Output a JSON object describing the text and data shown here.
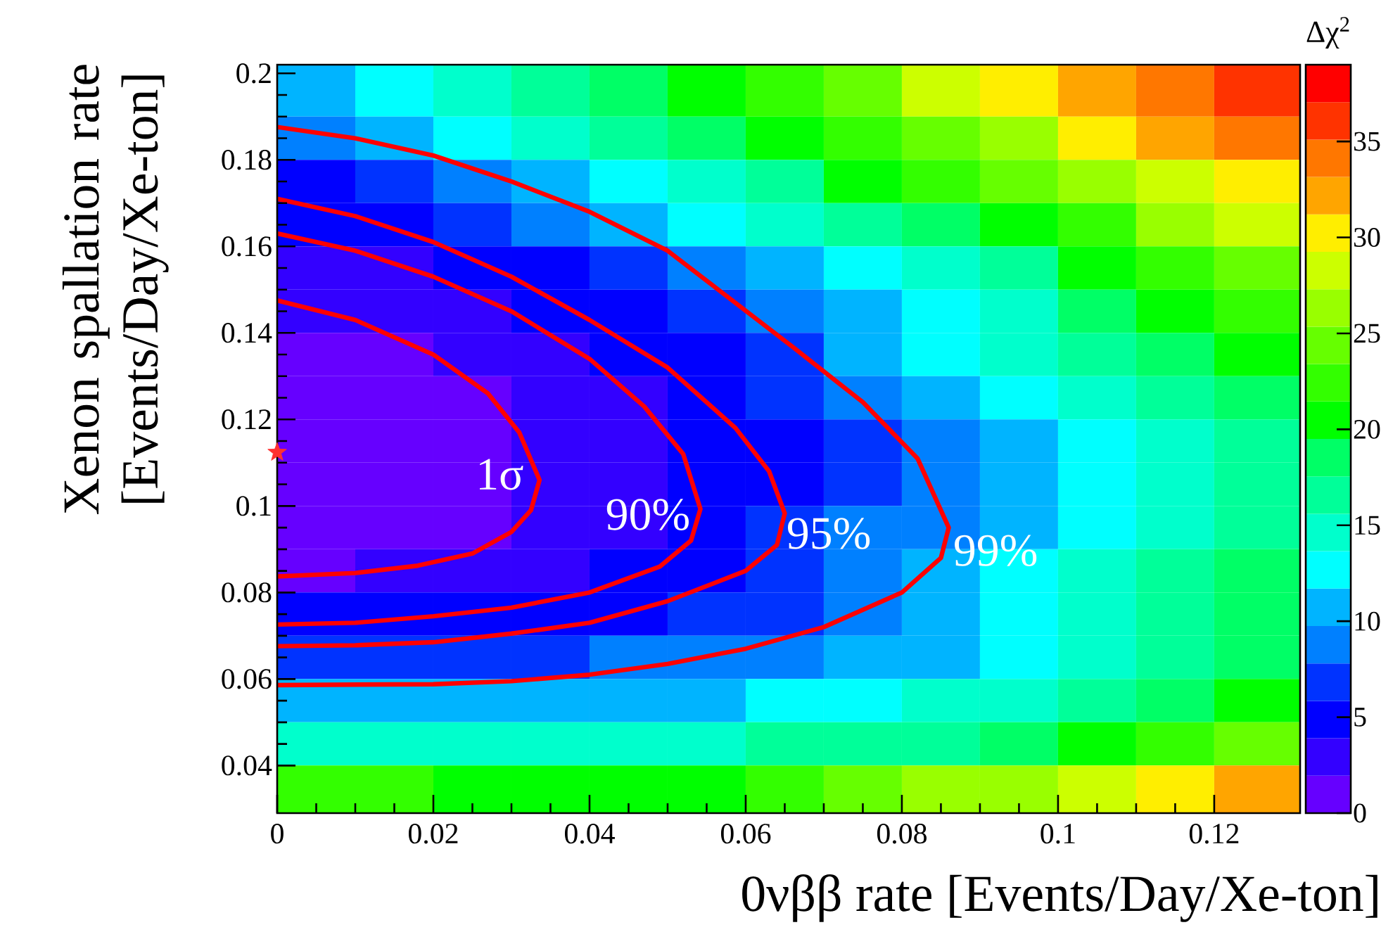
{
  "chart_data": {
    "type": "heatmap",
    "xlabel": "0νββ rate [Events/Day/Xe-ton]",
    "ylabel": "Xenon spallation rate [Events/Day/Xe-ton]",
    "clabel": "Δχ$^{2}$",
    "x": [
      0.005,
      0.015,
      0.025,
      0.035,
      0.045,
      0.055,
      0.065,
      0.075,
      0.085,
      0.095,
      0.105,
      0.115,
      0.125
    ],
    "y": [
      0.195,
      0.185,
      0.175,
      0.165,
      0.155,
      0.145,
      0.135,
      0.125,
      0.115,
      0.105,
      0.095,
      0.085,
      0.075,
      0.065,
      0.055,
      0.045,
      0.035
    ],
    "cells": [
      [
        11,
        13,
        15,
        17,
        19,
        21,
        23,
        25,
        29,
        31,
        33,
        35,
        37
      ],
      [
        9,
        11,
        13,
        15,
        17,
        19,
        21,
        23,
        25,
        27,
        31,
        33,
        35
      ],
      [
        5.5,
        7,
        9,
        11,
        13,
        15,
        17,
        21,
        23,
        25,
        27,
        29,
        31
      ],
      [
        4,
        5,
        7,
        9,
        11,
        13,
        15,
        17,
        19,
        21,
        23,
        27,
        29
      ],
      [
        3,
        3.5,
        5,
        5,
        7,
        9,
        11,
        13,
        15,
        17,
        21,
        23,
        25
      ],
      [
        2.2,
        2.5,
        3,
        5,
        5,
        7,
        9,
        11,
        13,
        15,
        19,
        21,
        23
      ],
      [
        1.2,
        1.5,
        2.5,
        3,
        5,
        5,
        7,
        11,
        13,
        15,
        17,
        19,
        21
      ],
      [
        1,
        1,
        1.5,
        3,
        3,
        5,
        7,
        9,
        11,
        13,
        15,
        17,
        19
      ],
      [
        0.5,
        0.8,
        1.2,
        2.5,
        3,
        5,
        5.5,
        7.5,
        9,
        11,
        13,
        15,
        17
      ],
      [
        0.3,
        0.5,
        1,
        2.5,
        3,
        4.5,
        5.5,
        7.5,
        9,
        11,
        13,
        15,
        17
      ],
      [
        0.5,
        0.8,
        1.5,
        2.5,
        3.5,
        4.5,
        6.5,
        8,
        9.5,
        11,
        13,
        15,
        17
      ],
      [
        1.8,
        2,
        2.5,
        3,
        4,
        5,
        7,
        9,
        11,
        13,
        15,
        17,
        19
      ],
      [
        4,
        4,
        4.5,
        5,
        5.5,
        6.5,
        7.5,
        9.5,
        11,
        13,
        15,
        17,
        19
      ],
      [
        7,
        7,
        7.5,
        7.5,
        8,
        9,
        9.5,
        11,
        11.5,
        13,
        15,
        17,
        19
      ],
      [
        11,
        11,
        11,
        11,
        11,
        11.5,
        12,
        13,
        14,
        15,
        17,
        19,
        21
      ],
      [
        15.5,
        15.5,
        15,
        15,
        15,
        15.5,
        16,
        17,
        17.5,
        19,
        21,
        23,
        25
      ],
      [
        22,
        22,
        21,
        21,
        21,
        21,
        22,
        24,
        26,
        27,
        29,
        31,
        33
      ]
    ],
    "clim": [
      0,
      39
    ],
    "cticks": [
      0,
      5,
      10,
      15,
      20,
      25,
      30,
      35
    ],
    "xlim": [
      0,
      0.131
    ],
    "ylim": [
      0.029,
      0.202
    ],
    "xticks": [
      0,
      0.02,
      0.04,
      0.06,
      0.08,
      {
        "value": 0.1,
        "label": "0.1"
      },
      0.12
    ],
    "yticks": [
      0.04,
      0.06,
      0.08,
      {
        "value": 0.1,
        "label": "0.1"
      },
      0.12,
      0.14,
      0.16,
      0.18,
      {
        "value": 0.2,
        "label": "0.2"
      }
    ],
    "series": [
      {
        "type": "line",
        "name": "1σ",
        "color": "#ff0000",
        "x": [
          0,
          0.01,
          0.02,
          0.027,
          0.031,
          0.0336,
          0.0325,
          0.03,
          0.025,
          0.018,
          0.01,
          0
        ],
        "values": [
          0.1475,
          0.143,
          0.135,
          0.126,
          0.117,
          0.106,
          0.099,
          0.094,
          0.089,
          0.0862,
          0.0845,
          0.0837
        ]
      },
      {
        "type": "line",
        "name": "90%",
        "color": "#ff0000",
        "x": [
          0,
          0.01,
          0.02,
          0.03,
          0.04,
          0.047,
          0.052,
          0.0542,
          0.053,
          0.049,
          0.04,
          0.03,
          0.02,
          0.01,
          0
        ],
        "values": [
          0.163,
          0.159,
          0.153,
          0.145,
          0.134,
          0.123,
          0.112,
          0.0993,
          0.092,
          0.086,
          0.08,
          0.0765,
          0.0745,
          0.073,
          0.0726
        ]
      },
      {
        "type": "line",
        "name": "95%",
        "color": "#ff0000",
        "x": [
          0,
          0.01,
          0.02,
          0.03,
          0.04,
          0.05,
          0.0587,
          0.063,
          0.065,
          0.064,
          0.06,
          0.05,
          0.04,
          0.03,
          0.02,
          0.01,
          0
        ],
        "values": [
          0.171,
          0.167,
          0.161,
          0.153,
          0.143,
          0.132,
          0.118,
          0.108,
          0.0983,
          0.091,
          0.085,
          0.078,
          0.073,
          0.0705,
          0.0685,
          0.0678,
          0.0676
        ]
      },
      {
        "type": "line",
        "name": "99%",
        "color": "#ff0000",
        "x": [
          0,
          0.01,
          0.02,
          0.03,
          0.04,
          0.05,
          0.0662,
          0.075,
          0.082,
          0.086,
          0.085,
          0.08,
          0.07,
          0.06,
          0.05,
          0.04,
          0.03,
          0.02,
          0
        ],
        "values": [
          0.1876,
          0.185,
          0.181,
          0.175,
          0.168,
          0.159,
          0.1365,
          0.124,
          0.111,
          0.095,
          0.088,
          0.08,
          0.072,
          0.067,
          0.0635,
          0.061,
          0.0595,
          0.0588,
          0.0586
        ]
      },
      {
        "type": "scatter",
        "color": "#ff3030",
        "marker": "star",
        "x": [
          0
        ],
        "values": [
          0.1124
        ]
      }
    ]
  }
}
